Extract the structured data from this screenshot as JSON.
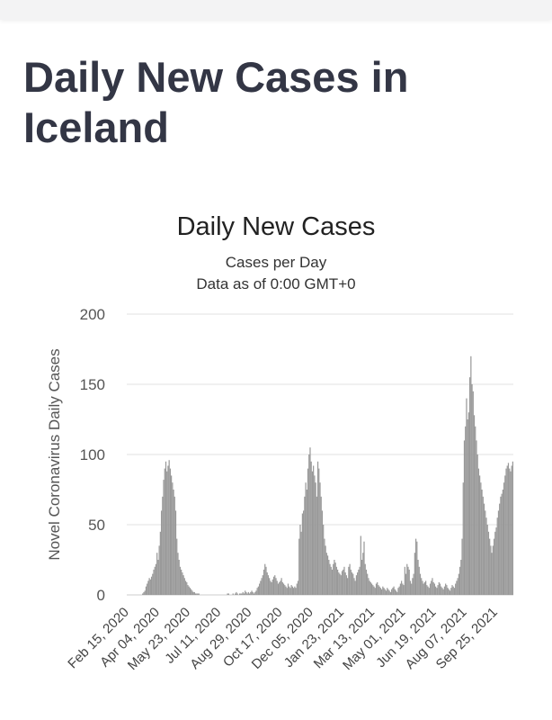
{
  "page_title": "Daily New Cases in Iceland",
  "chart_data": {
    "type": "bar",
    "title": "Daily New Cases",
    "subtitle": "Cases per Day",
    "subtitle2": "Data as of 0:00 GMT+0",
    "xlabel": "",
    "ylabel": "Novel Coronavirus Daily Cases",
    "ylim": [
      0,
      200
    ],
    "y_ticks": [
      0,
      50,
      100,
      150,
      200
    ],
    "x_start": "2020-02-15",
    "x_ticks": [
      "Feb 15, 2020",
      "Apr 04, 2020",
      "May 23, 2020",
      "Jul 11, 2020",
      "Aug 29, 2020",
      "Oct 17, 2020",
      "Dec 05, 2020",
      "Jan 23, 2021",
      "Mar 13, 2021",
      "May 01, 2021",
      "Jun 19, 2021",
      "Aug 07, 2021",
      "Sep 25, 2021"
    ],
    "bar_color": "#999999",
    "grid": true,
    "legend": "none",
    "values": [
      0,
      0,
      0,
      0,
      0,
      0,
      0,
      0,
      0,
      0,
      0,
      0,
      0,
      0,
      1,
      2,
      3,
      6,
      8,
      10,
      12,
      11,
      13,
      15,
      18,
      20,
      22,
      30,
      25,
      35,
      45,
      60,
      70,
      82,
      90,
      95,
      88,
      92,
      96,
      90,
      85,
      80,
      75,
      70,
      60,
      40,
      30,
      25,
      20,
      18,
      16,
      14,
      12,
      10,
      9,
      7,
      6,
      5,
      4,
      3,
      2,
      2,
      1,
      1,
      1,
      1,
      0,
      0,
      0,
      0,
      0,
      0,
      0,
      0,
      0,
      0,
      0,
      0,
      0,
      0,
      0,
      0,
      0,
      0,
      0,
      0,
      0,
      0,
      0,
      0,
      0,
      1,
      1,
      0,
      0,
      0,
      1,
      0,
      1,
      2,
      1,
      0,
      1,
      1,
      1,
      2,
      1,
      3,
      2,
      1,
      2,
      1,
      2,
      3,
      2,
      1,
      2,
      3,
      5,
      6,
      8,
      10,
      12,
      14,
      18,
      22,
      20,
      16,
      14,
      12,
      10,
      9,
      11,
      13,
      14,
      12,
      10,
      8,
      9,
      10,
      12,
      9,
      8,
      7,
      6,
      5,
      8,
      6,
      5,
      7,
      6,
      5,
      6,
      5,
      8,
      10,
      40,
      50,
      45,
      58,
      60,
      70,
      80,
      75,
      90,
      100,
      105,
      95,
      88,
      92,
      85,
      80,
      70,
      95,
      90,
      80,
      70,
      60,
      50,
      40,
      35,
      30,
      28,
      25,
      22,
      20,
      18,
      22,
      25,
      23,
      20,
      18,
      16,
      15,
      14,
      17,
      18,
      20,
      16,
      14,
      12,
      20,
      22,
      18,
      16,
      15,
      12,
      10,
      14,
      16,
      18,
      20,
      42,
      25,
      30,
      38,
      22,
      18,
      15,
      12,
      10,
      9,
      8,
      7,
      6,
      5,
      8,
      9,
      7,
      6,
      5,
      4,
      6,
      5,
      4,
      3,
      5,
      4,
      3,
      2,
      4,
      5,
      6,
      4,
      3,
      2,
      5,
      6,
      8,
      10,
      8,
      7,
      20,
      15,
      22,
      20,
      18,
      10,
      8,
      12,
      15,
      30,
      40,
      38,
      25,
      20,
      15,
      12,
      10,
      8,
      9,
      10,
      7,
      6,
      5,
      8,
      10,
      12,
      9,
      8,
      6,
      5,
      7,
      9,
      8,
      6,
      5,
      4,
      6,
      8,
      7,
      5,
      4,
      3,
      5,
      7,
      6,
      5,
      8,
      10,
      12,
      15,
      20,
      25,
      40,
      80,
      110,
      120,
      140,
      125,
      130,
      155,
      170,
      150,
      145,
      128,
      120,
      110,
      100,
      90,
      85,
      80,
      75,
      70,
      65,
      60,
      55,
      50,
      45,
      40,
      35,
      30,
      35,
      40,
      45,
      48,
      55,
      60,
      65,
      70,
      72,
      75,
      80,
      85,
      90,
      92,
      94,
      90,
      88,
      92,
      95
    ]
  }
}
